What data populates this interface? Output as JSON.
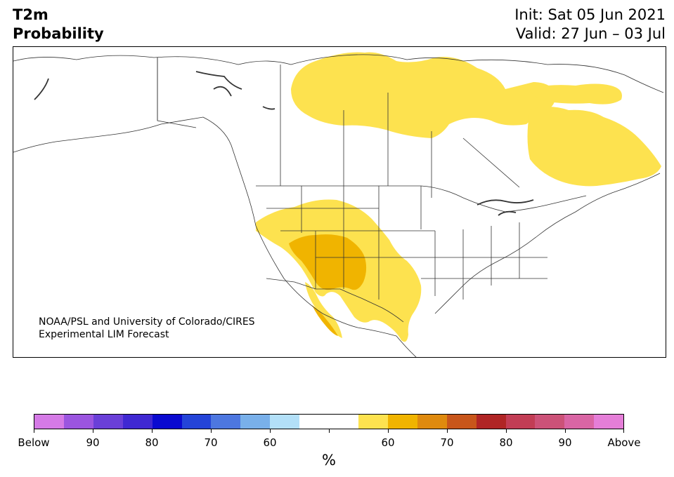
{
  "title": {
    "left_line1": "T2m",
    "left_line2": "Probability",
    "right_line1": "Init: Sat 05 Jun 2021",
    "right_line2": "Valid: 27 Jun – 03 Jul"
  },
  "credit": {
    "line1": "NOAA/PSL and University of Colorado/CIRES",
    "line2": "Experimental LIM Forecast"
  },
  "colorbar": {
    "unit": "%",
    "colors": [
      "#d57ae6",
      "#9b55e0",
      "#6a3fd8",
      "#3f28d2",
      "#0a0ad0",
      "#2444d8",
      "#4d77e0",
      "#79b0ea",
      "#b3e0f8",
      "#ffffff",
      "#ffffff",
      "#fde24f",
      "#f0b400",
      "#df8a0e",
      "#c8561b",
      "#b02525",
      "#c23d55",
      "#cc5278",
      "#d965a4",
      "#e57ed8"
    ],
    "tick_labels": [
      "Below",
      "90",
      "80",
      "70",
      "60",
      "",
      "60",
      "70",
      "80",
      "90",
      "Above"
    ]
  },
  "map": {
    "fill_colors": {
      "above_55": "#fde24f",
      "above_60": "#f0b400",
      "land": "#ffffff",
      "border": "#333333"
    }
  }
}
